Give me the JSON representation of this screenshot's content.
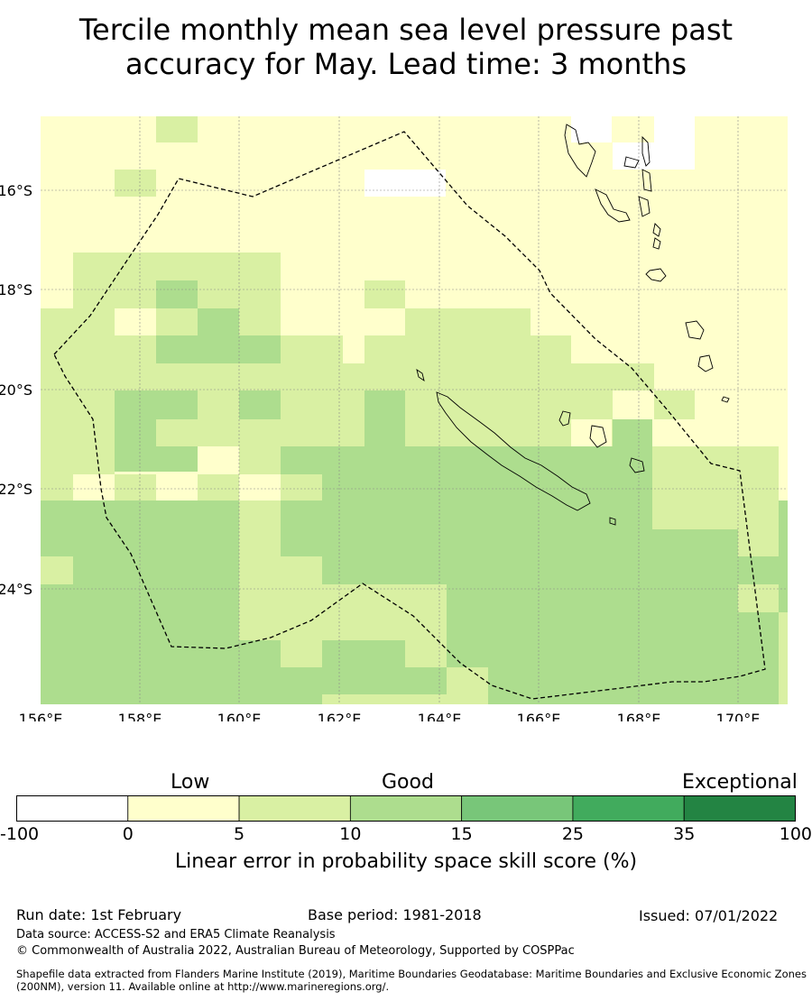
{
  "title_line1": "Tercile monthly mean sea level pressure past",
  "title_line2": "accuracy for May. Lead time: 3 months",
  "map": {
    "lon_labels": [
      "156°E",
      "158°E",
      "160°E",
      "162°E",
      "164°E",
      "166°E",
      "168°E",
      "170°E"
    ],
    "lat_labels": [
      "16°S",
      "18°S",
      "20°S",
      "22°S",
      "24°S"
    ],
    "boundary": "dashed-eez-outline"
  },
  "colorbar": {
    "categories": [
      "Low",
      "Good",
      "Exceptional"
    ],
    "ticks": [
      "-100",
      "0",
      "5",
      "10",
      "15",
      "25",
      "35",
      "100"
    ],
    "colors": [
      "#ffffff",
      "#ffffcc",
      "#d9f0a3",
      "#addd8e",
      "#78c679",
      "#41ab5d",
      "#238443"
    ],
    "title": "Linear error in probability space skill score (%)"
  },
  "footer": {
    "run_date": "Run date: 1st February",
    "base_period": "Base period: 1981-2018",
    "issued": "Issued: 07/01/2022",
    "data_source": "Data source: ACCESS-S2 and ERA5 Climate Reanalysis",
    "copyright": "© Commonwealth of Australia 2022, Australian Bureau of Meteorology, Supported by COSPPac",
    "shapefile": "Shapefile data extracted from Flanders Marine Institute (2019), Maritime Boundaries Geodatabase: Maritime Boundaries and Exclusive Economic Zones (200NM), version 11. Available online at http://www.marineregions.org/."
  }
}
